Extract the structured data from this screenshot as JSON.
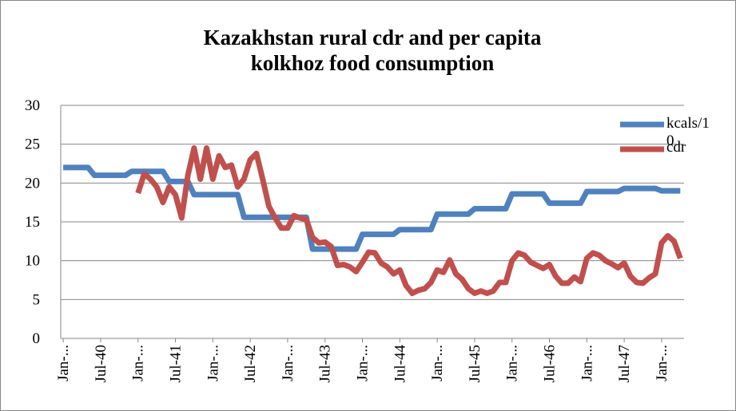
{
  "chart_data": {
    "type": "line",
    "title": "Kazakhstan rural cdr and per capita kolkhoz food consumption",
    "categories": [
      "Jan-...",
      null,
      null,
      null,
      null,
      null,
      "Jul-40",
      null,
      null,
      null,
      null,
      null,
      "Jan-...",
      null,
      null,
      null,
      null,
      null,
      "Jul-41",
      null,
      null,
      null,
      null,
      null,
      "Jan-...",
      null,
      null,
      null,
      null,
      null,
      "Jul-42",
      null,
      null,
      null,
      null,
      null,
      "Jan-...",
      null,
      null,
      null,
      null,
      null,
      "Jul-43",
      null,
      null,
      null,
      null,
      null,
      "Jan-...",
      null,
      null,
      null,
      null,
      null,
      "Jul-44",
      null,
      null,
      null,
      null,
      null,
      "Jan-...",
      null,
      null,
      null,
      null,
      null,
      "Jul-45",
      null,
      null,
      null,
      null,
      null,
      "Jan-...",
      null,
      null,
      null,
      null,
      null,
      "Jul-46",
      null,
      null,
      null,
      null,
      null,
      "Jan-...",
      null,
      null,
      null,
      null,
      null,
      "Jul-47",
      null,
      null,
      null,
      null,
      null,
      "Jan-...",
      null,
      null,
      null
    ],
    "series": [
      {
        "name": "kcals/10",
        "color": "#4f81bd",
        "values": [
          22,
          22,
          22,
          22,
          22,
          21,
          21,
          21,
          21,
          21,
          21,
          21.5,
          21.5,
          21.5,
          21.5,
          21.5,
          21.5,
          20.2,
          20.2,
          20.2,
          20.2,
          18.5,
          18.5,
          18.5,
          18.5,
          18.5,
          18.5,
          18.5,
          18.5,
          15.6,
          15.6,
          15.6,
          15.6,
          15.6,
          15.6,
          15.6,
          15.6,
          15.6,
          15.6,
          15.6,
          11.5,
          11.5,
          11.5,
          11.5,
          11.5,
          11.5,
          11.5,
          11.5,
          13.4,
          13.4,
          13.4,
          13.4,
          13.4,
          13.4,
          14,
          14,
          14,
          14,
          14,
          14,
          16,
          16,
          16,
          16,
          16,
          16,
          16.7,
          16.7,
          16.7,
          16.7,
          16.7,
          16.7,
          18.6,
          18.6,
          18.6,
          18.6,
          18.6,
          18.6,
          17.4,
          17.4,
          17.4,
          17.4,
          17.4,
          17.4,
          18.9,
          18.9,
          18.9,
          18.9,
          18.9,
          18.9,
          19.3,
          19.3,
          19.3,
          19.3,
          19.3,
          19.3,
          19,
          19,
          19,
          19
        ]
      },
      {
        "name": "cdr",
        "color": "#c0504d",
        "values": [
          null,
          null,
          null,
          null,
          null,
          null,
          null,
          null,
          null,
          null,
          null,
          null,
          18.7,
          21.2,
          20.5,
          19.5,
          17.5,
          19.5,
          18.5,
          15.5,
          21,
          24.5,
          20.5,
          24.5,
          20.5,
          23.5,
          22,
          22.3,
          19.5,
          20.5,
          23,
          23.8,
          20.5,
          17,
          15.5,
          14.2,
          14.2,
          15.8,
          15.5,
          15.3,
          13,
          12.3,
          12.4,
          11.8,
          9.4,
          9.5,
          9.2,
          8.6,
          9.8,
          11.1,
          11,
          9.7,
          9.2,
          8.3,
          8.8,
          6.8,
          5.8,
          6.2,
          6.4,
          7.2,
          8.8,
          8.5,
          10.1,
          8.3,
          7.6,
          6.4,
          5.8,
          6.1,
          5.8,
          6.1,
          7.2,
          7.2,
          10,
          11,
          10.7,
          9.8,
          9.4,
          9,
          9.5,
          8,
          7.1,
          7.1,
          7.9,
          7.3,
          10.3,
          11,
          10.7,
          10,
          9.6,
          9.1,
          9.7,
          8,
          7.2,
          7.1,
          7.8,
          8.3,
          12.3,
          13.2,
          12.5,
          10.3
        ]
      }
    ],
    "ylim": [
      0,
      30
    ],
    "yticks": [
      0,
      5,
      10,
      15,
      20,
      25,
      30
    ],
    "grid": true,
    "legend": "right"
  }
}
